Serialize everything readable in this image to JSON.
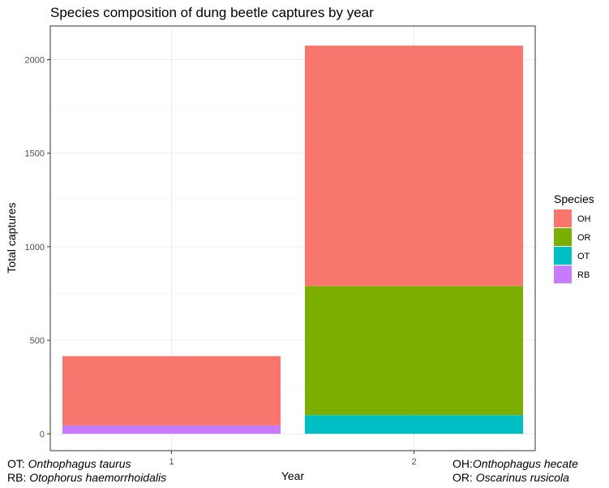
{
  "chart_data": {
    "type": "bar",
    "stacked": true,
    "title": "Species composition of dung beetle captures by year",
    "xlabel": "Year",
    "ylabel": "Total captures",
    "categories": [
      "1",
      "2"
    ],
    "ylim": [
      -90,
      2180
    ],
    "yticks": [
      0,
      500,
      1000,
      1500,
      2000
    ],
    "legend_title": "Species",
    "legend_position": "right",
    "series": [
      {
        "name": "OH",
        "color": "#F8766D",
        "values": [
          370,
          1285
        ]
      },
      {
        "name": "OR",
        "color": "#7CAE00",
        "values": [
          0,
          690
        ]
      },
      {
        "name": "OT",
        "color": "#00BFC4",
        "values": [
          0,
          100
        ]
      },
      {
        "name": "RB",
        "color": "#C77CFF",
        "values": [
          45,
          0
        ]
      }
    ],
    "stack_order_bottom_to_top": [
      "RB",
      "OT",
      "OR",
      "OH"
    ]
  },
  "captions": {
    "ot_code": "OT:",
    "ot_name": "Onthophagus taurus",
    "rb_code": "RB:",
    "rb_name": "Otophorus haemorrhoidalis",
    "oh_code": "OH:",
    "oh_name": "Onthophagus hecate",
    "or_code": "OR:",
    "or_name": "Oscarinus rusicola"
  },
  "colors": {
    "panel_border": "#333333",
    "grid_major": "#ebebeb",
    "grid_minor": "#f5f5f5"
  }
}
